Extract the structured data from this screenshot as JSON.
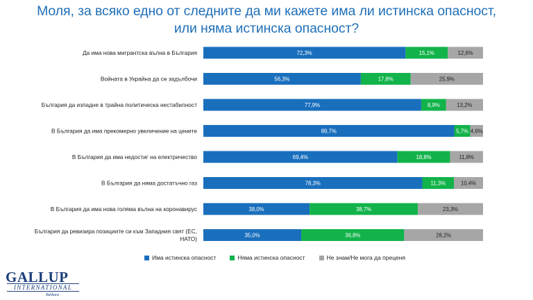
{
  "title_lines": [
    "Моля, за всяко едно от следните да ми кажете има ли истинска опасност,",
    "или няма истинска опасност?"
  ],
  "colors": {
    "title": "#1f6fb8",
    "real_danger": "#1a6fbd",
    "no_danger": "#12b34a",
    "dont_know": "#a6a6a6"
  },
  "chart_data": {
    "type": "bar",
    "orientation": "horizontal",
    "stacked": true,
    "normalized": true,
    "categories": [
      "Да има нова мигрантска вълна в България",
      "Войната в Украйна да се задълбочи",
      "България да изпадне в трайна политическа нестабилност",
      "В България да има прекомерно увеличение на цените",
      "В България да има недостиг на електричество",
      "В България да няма достатъчно газ",
      "В България да има нова голяма вълна на коронавирус",
      "България да ревизира позициите си към Западния свят (ЕС, НАТО)"
    ],
    "series": [
      {
        "name": "Има истинска опасност",
        "values": [
          72.3,
          56.3,
          77.9,
          89.7,
          69.4,
          78.3,
          38.0,
          35.0
        ],
        "labels": [
          "72,3%",
          "56,3%",
          "77,9%",
          "89,7%",
          "69,4%",
          "78,3%",
          "38,0%",
          "35,0%"
        ]
      },
      {
        "name": "Няма истинска опасност",
        "values": [
          15.1,
          17.8,
          8.9,
          5.7,
          18.8,
          11.3,
          38.7,
          36.8
        ],
        "labels": [
          "15,1%",
          "17,8%",
          "8,9%",
          "5,7%",
          "18,8%",
          "11,3%",
          "38,7%",
          "36,8%"
        ]
      },
      {
        "name": "Не знам/Не мога да преценя",
        "values": [
          12.6,
          25.9,
          13.2,
          4.6,
          11.8,
          10.4,
          23.3,
          28.2
        ],
        "labels": [
          "12,6%",
          "25,9%",
          "13,2%",
          "4,6%",
          "11,8%",
          "10,4%",
          "23,3%",
          "28,2%"
        ]
      }
    ],
    "legend_position": "bottom",
    "grid": false
  },
  "logo": {
    "main": "GALLUP",
    "sub": "INTERNATIONAL",
    "region": "Balkans"
  }
}
